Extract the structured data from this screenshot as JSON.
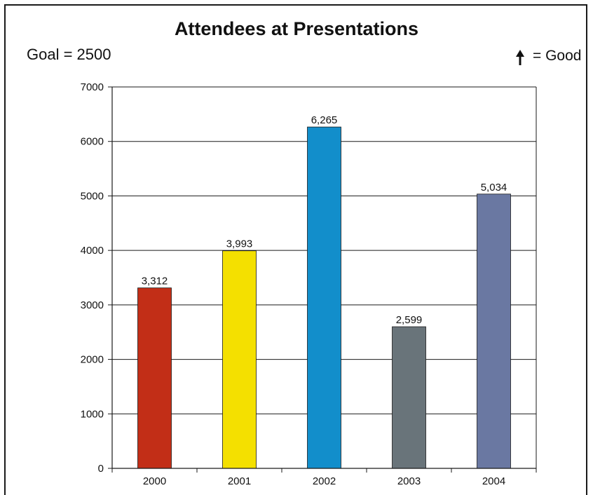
{
  "chart_data": {
    "type": "bar",
    "title": "Attendees at Presentations",
    "subtitle_left": "Goal = 2500",
    "direction_note": "= Good",
    "direction_icon": "up-arrow-icon",
    "categories": [
      "2000",
      "2001",
      "2002",
      "2003",
      "2004"
    ],
    "values": [
      3312,
      3993,
      6265,
      2599,
      5034
    ],
    "value_labels": [
      "3,312",
      "3,993",
      "6,265",
      "2,599",
      "5,034"
    ],
    "bar_colors": [
      "#c22e17",
      "#f4e000",
      "#128ecb",
      "#69747a",
      "#6a78a2"
    ],
    "ylim": [
      0,
      7000
    ],
    "yticks": [
      0,
      1000,
      2000,
      3000,
      4000,
      5000,
      6000,
      7000
    ],
    "grid": true,
    "xlabel": "",
    "ylabel": ""
  }
}
